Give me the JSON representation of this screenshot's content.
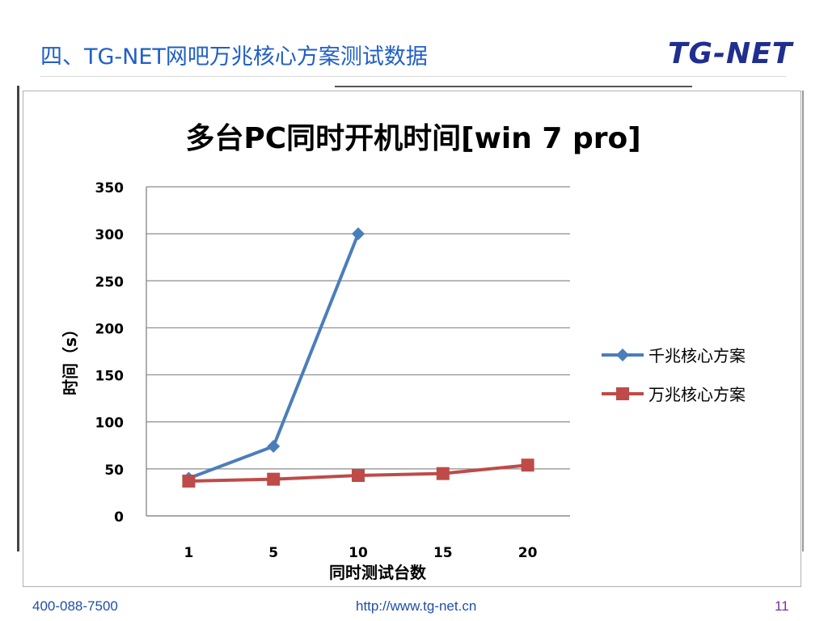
{
  "slide": {
    "title": "四、TG-NET网吧万兆核心方案测试数据",
    "logo_text": "TG-NET"
  },
  "footer": {
    "phone": "400-088-7500",
    "url": "http://www.tg-net.cn",
    "page": "11"
  },
  "colors": {
    "title": "#1f5fc8",
    "series_gigabit": "#4a7ebb",
    "series_tengig": "#be4b48"
  },
  "chart_data": {
    "type": "line",
    "title": "多台PC同时开机时间[win 7 pro]",
    "xlabel": "同时测试台数",
    "ylabel": "时间（s）",
    "categories": [
      "1",
      "5",
      "10",
      "15",
      "20"
    ],
    "ylim": [
      0,
      350
    ],
    "yticks": [
      "0",
      "50",
      "100",
      "150",
      "200",
      "250",
      "300",
      "350"
    ],
    "grid": true,
    "legend_position": "right",
    "series": [
      {
        "name": "千兆核心方案",
        "marker": "diamond",
        "color": "#4a7ebb",
        "values": [
          40,
          74,
          300,
          null,
          null
        ]
      },
      {
        "name": "万兆核心方案",
        "marker": "square",
        "color": "#be4b48",
        "values": [
          37,
          39,
          43,
          45,
          54
        ]
      }
    ]
  }
}
